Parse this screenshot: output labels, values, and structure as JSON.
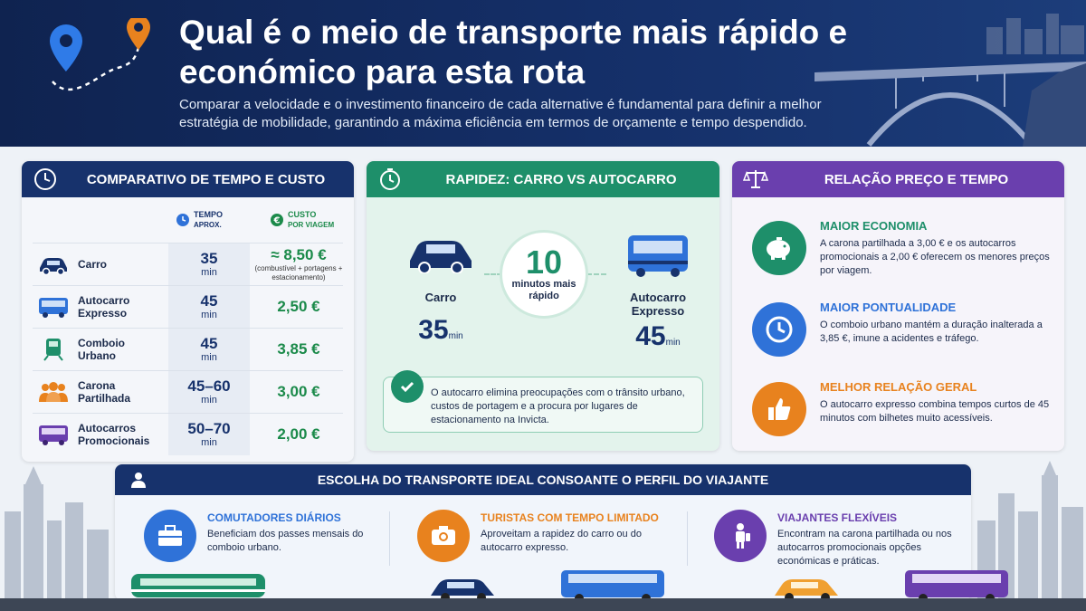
{
  "header": {
    "title": "Qual é o meio de transporte mais rápido e económico para esta rota",
    "subtitle": "Comparar a velocidade e o investimento financeiro de cada alternative é fundamental para definir a melhor estratégia de mobilidade, garantindo a máxima eficiência em termos de orçamente e tempo despendido."
  },
  "comparison": {
    "title": "COMPARATIVO DE TEMPO E CUSTO",
    "col_time": "TEMPO",
    "col_time_sub": "APROX.",
    "col_cost": "CUSTO",
    "col_cost_sub": "POR VIAGEM",
    "rows": [
      {
        "name": "Carro",
        "time": "35",
        "unit": "min",
        "cost": "≈ 8,50 €",
        "note": "(combustível + portagens + estacionamento)"
      },
      {
        "name": "Autocarro Expresso",
        "time": "45",
        "unit": "min",
        "cost": "2,50 €",
        "note": ""
      },
      {
        "name": "Comboio Urbano",
        "time": "45",
        "unit": "min",
        "cost": "3,85 €",
        "note": ""
      },
      {
        "name": "Carona Partilhada",
        "time": "45–60",
        "unit": "min",
        "cost": "3,00 €",
        "note": ""
      },
      {
        "name": "Autocarros Promocionais",
        "time": "50–70",
        "unit": "min",
        "cost": "2,00 €",
        "note": ""
      }
    ]
  },
  "speed": {
    "title": "RAPIDEZ: CARRO VS AUTOCARRO",
    "left_label": "Carro",
    "left_time": "35",
    "right_label": "Autocarro Expresso",
    "right_time": "45",
    "unit": "min",
    "diff_value": "10",
    "diff_text": "minutos mais rápido",
    "note": "O autocarro elimina preocupações com o trânsito urbano, custos de portagem e a procura por lugares de estacionamento na Invicta."
  },
  "relation": {
    "title": "RELAÇÃO PREÇO E TEMPO",
    "items": [
      {
        "heading": "MAIOR ECONOMIA",
        "text": "A carona partilhada a 3,00 € e os autocarros promocionais a 2,00 € oferecem os menores preços por viagem."
      },
      {
        "heading": "MAIOR PONTUALIDADE",
        "text": "O comboio urbano mantém a duração inalterada a 3,85 €, imune a acidentes e tráfego."
      },
      {
        "heading": "MELHOR RELAÇÃO GERAL",
        "text": "O autocarro expresso combina tempos curtos de 45 minutos com bilhetes muito acessíveis."
      }
    ]
  },
  "profiles": {
    "title": "ESCOLHA DO TRANSPORTE IDEAL CONSOANTE O PERFIL DO VIAJANTE",
    "items": [
      {
        "heading": "COMUTADORES DIÁRIOS",
        "text": "Beneficiam dos passes mensais do comboio urbano."
      },
      {
        "heading": "TURISTAS COM TEMPO LIMITADO",
        "text": "Aproveitam a rapidez do carro ou do autocarro expresso."
      },
      {
        "heading": "VIAJANTES FLEXÍVEIS",
        "text": "Encontram na carona partilhada ou nos autocarros promocionais opções económicas e práticas."
      }
    ]
  },
  "colors": {
    "navy": "#17326c",
    "green": "#1e8f6a",
    "purple": "#6a3fae",
    "blue": "#2f72d8",
    "orange": "#e8821e"
  }
}
